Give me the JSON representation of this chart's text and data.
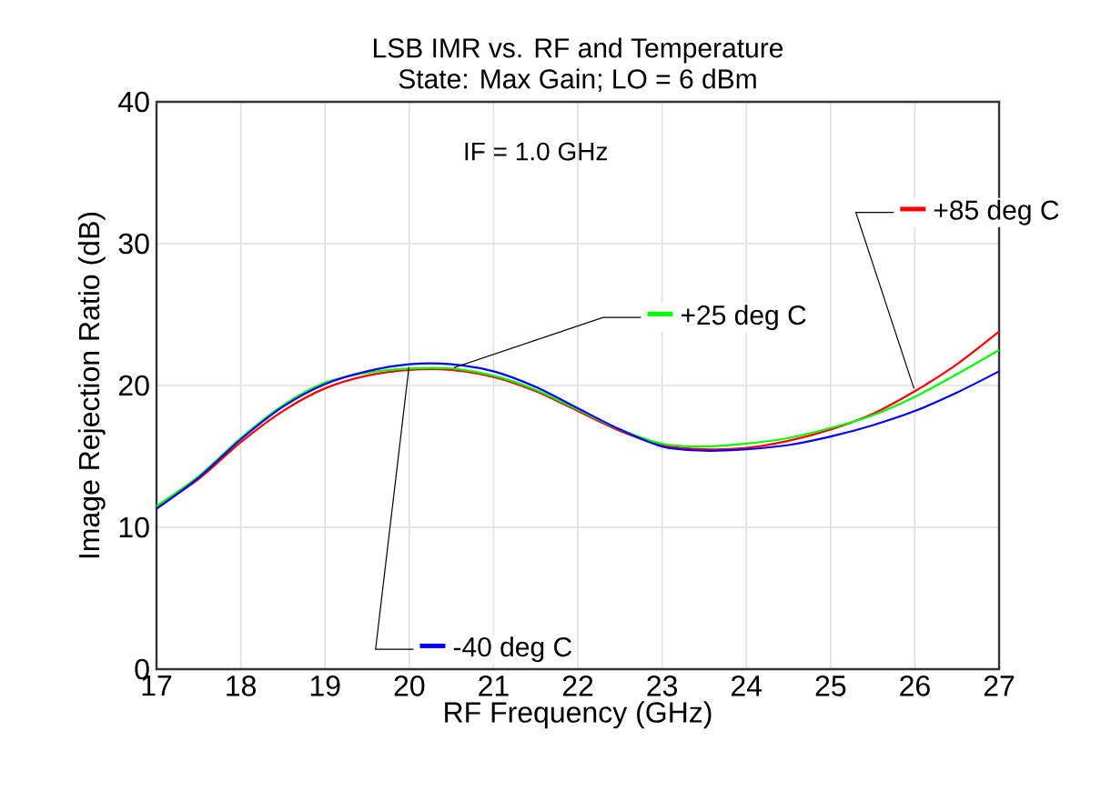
{
  "chart_data": {
    "type": "line",
    "title": "LSB IMR vs. RF and Temperature",
    "subtitle": "State: Max Gain; LO = 6 dBm",
    "xlabel": "RF Frequency (GHz)",
    "ylabel": "Image Rejection Ratio (dB)",
    "x": [
      17,
      17.5,
      18,
      18.5,
      19,
      19.5,
      20,
      20.5,
      21,
      21.5,
      22,
      22.5,
      23,
      23.5,
      24,
      24.5,
      25,
      25.5,
      26,
      26.5,
      27
    ],
    "series": [
      {
        "name": "+85 deg C",
        "color": "#ff0000",
        "values": [
          11.4,
          13.4,
          16.0,
          18.2,
          19.8,
          20.7,
          21.1,
          21.1,
          20.6,
          19.6,
          18.2,
          16.8,
          15.8,
          15.5,
          15.6,
          16.1,
          16.9,
          18.0,
          19.6,
          21.5,
          23.8
        ]
      },
      {
        "name": "+25 deg C",
        "color": "#00ff00",
        "values": [
          11.5,
          13.6,
          16.3,
          18.6,
          20.2,
          20.9,
          21.2,
          21.2,
          20.7,
          19.7,
          18.3,
          16.9,
          15.9,
          15.7,
          15.9,
          16.3,
          17.0,
          17.9,
          19.2,
          20.8,
          22.5
        ]
      },
      {
        "name": "-40 deg C",
        "color": "#0000ff",
        "values": [
          11.3,
          13.5,
          16.2,
          18.5,
          20.1,
          21.0,
          21.5,
          21.5,
          21.0,
          19.9,
          18.4,
          16.9,
          15.7,
          15.4,
          15.5,
          15.8,
          16.4,
          17.2,
          18.2,
          19.5,
          21.0
        ]
      }
    ],
    "xlim": [
      17,
      27
    ],
    "ylim": [
      0,
      40
    ],
    "xticks": [
      17,
      18,
      19,
      20,
      21,
      22,
      23,
      24,
      25,
      26,
      27
    ],
    "yticks": [
      0,
      10,
      20,
      30,
      40
    ],
    "grid": true,
    "legend": "right",
    "line_style": "solid",
    "marker": "none",
    "annotations": [
      "IF = 1.0 GHz"
    ]
  }
}
